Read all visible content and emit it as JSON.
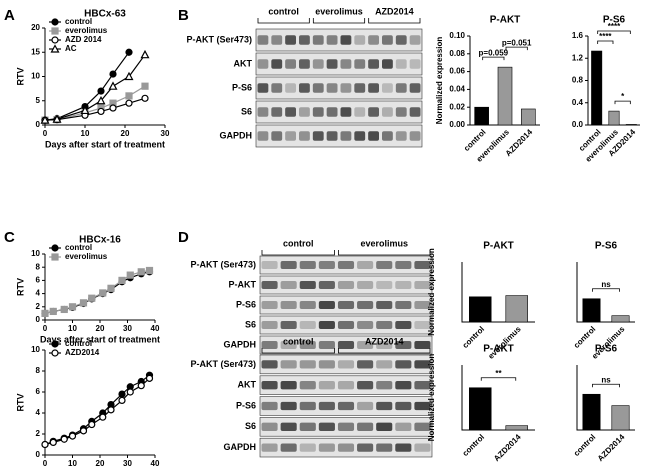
{
  "panels": [
    "A",
    "B",
    "C",
    "D"
  ],
  "blots": [
    {
      "groups": [
        "control",
        "everolimus",
        "AZD2014"
      ],
      "rows": [
        "P-AKT  (Ser473)",
        "AKT",
        "P-S6",
        "S6",
        "GAPDH"
      ]
    },
    {
      "groups": [
        "control",
        "everolimus"
      ],
      "rows": [
        "P-AKT (Ser473)",
        "P-AKT",
        "P-S6",
        "S6",
        "GAPDH"
      ]
    },
    {
      "groups": [
        "control",
        "AZD2014"
      ],
      "rows": [
        "P-AKT (Ser473)",
        "AKT",
        "P-S6",
        "S6",
        "GAPDH"
      ]
    }
  ],
  "chart_data": [
    {
      "type": "line",
      "title": "HBCx-63",
      "x_label": "Days after start of treatment",
      "y_label": "RTV",
      "x": [
        0,
        3,
        10,
        14,
        17,
        21,
        25
      ],
      "xlim": [
        0,
        30
      ],
      "xticks": [
        0,
        10,
        20,
        30
      ],
      "ylim": [
        0,
        20
      ],
      "yticks": [
        0,
        5,
        10,
        15,
        20
      ],
      "series": [
        {
          "name": "control",
          "color": "#000000",
          "marker": "circle-filled",
          "values": [
            1,
            1.3,
            3.8,
            7,
            10.5,
            15,
            null
          ]
        },
        {
          "name": "everolimus",
          "color": "#999999",
          "marker": "square-filled",
          "values": [
            1,
            1.1,
            2.5,
            3.5,
            4.5,
            6,
            8
          ]
        },
        {
          "name": "AZD 2014",
          "color": "#000000",
          "marker": "circle-open",
          "values": [
            1,
            1.1,
            2,
            2.8,
            3.5,
            4.5,
            5.5
          ]
        },
        {
          "name": "AC",
          "color": "#000000",
          "marker": "triangle-open",
          "values": [
            1,
            1.2,
            3,
            5,
            8,
            10,
            14.5
          ]
        }
      ]
    },
    {
      "type": "bar",
      "title": "P-AKT",
      "y_label": "Normalized expression",
      "categories": [
        "control",
        "everolimus",
        "AZD2014"
      ],
      "values": [
        0.02,
        0.065,
        0.018
      ],
      "colors": [
        "#000000",
        "#999999",
        "#999999"
      ],
      "ylim": [
        0,
        0.1
      ],
      "yticks": [
        {
          "value": 0,
          "label": "0.00"
        },
        {
          "value": 0.02,
          "label": "0.02"
        },
        {
          "value": 0.04,
          "label": "0.04"
        },
        {
          "value": 0.06,
          "label": "0.06"
        },
        {
          "value": 0.08,
          "label": "0.08"
        },
        {
          "value": 0.1,
          "label": "0.10"
        }
      ],
      "annotations": [
        {
          "text": "p=0.059",
          "between": [
            0,
            1
          ]
        },
        {
          "text": "p=0.051",
          "between": [
            1,
            2
          ]
        }
      ]
    },
    {
      "type": "bar",
      "title": "P-S6",
      "categories": [
        "control",
        "everolimus",
        "AZD2014"
      ],
      "values": [
        1.33,
        0.25,
        0.01
      ],
      "colors": [
        "#000000",
        "#999999",
        "#999999"
      ],
      "ylim": [
        0,
        1.6
      ],
      "yticks": [
        {
          "value": 0,
          "label": "0.0"
        },
        {
          "value": 0.4,
          "label": "0.4"
        },
        {
          "value": 0.8,
          "label": "0.8"
        },
        {
          "value": 1.2,
          "label": "1.2"
        },
        {
          "value": 1.6,
          "label": "1.6"
        }
      ],
      "annotations": [
        {
          "text": "*",
          "between": [
            1,
            2
          ]
        },
        {
          "text": "****",
          "between": [
            0,
            1
          ]
        },
        {
          "text": "****",
          "between": [
            0,
            2
          ]
        }
      ]
    },
    {
      "type": "line",
      "title": "HBCx-16",
      "x_label": "Days after start of treatment",
      "y_label": "RTV",
      "x": [
        0,
        3,
        7,
        10,
        14,
        17,
        21,
        24,
        28,
        31,
        35,
        38
      ],
      "xlim": [
        0,
        40
      ],
      "xticks": [
        0,
        10,
        20,
        30,
        40
      ],
      "ylim": [
        0,
        10
      ],
      "yticks": [
        0,
        2,
        4,
        6,
        8,
        10
      ],
      "series": [
        {
          "name": "control",
          "color": "#000000",
          "marker": "circle-filled",
          "values": [
            1,
            1.3,
            1.6,
            1.9,
            2.5,
            3.2,
            4,
            4.6,
            5.8,
            6.4,
            7,
            7.3
          ]
        },
        {
          "name": "everolimus",
          "color": "#999999",
          "marker": "square-filled",
          "values": [
            1,
            1.3,
            1.6,
            2,
            2.6,
            3.3,
            4.1,
            4.8,
            6,
            6.8,
            7.3,
            7.5
          ]
        }
      ]
    },
    {
      "type": "line",
      "x_label": "Days after start of treatment",
      "y_label": "RTV",
      "x": [
        0,
        3,
        7,
        10,
        14,
        17,
        21,
        24,
        28,
        31,
        35,
        38
      ],
      "xlim": [
        0,
        40
      ],
      "xticks": [
        0,
        10,
        20,
        30,
        40
      ],
      "ylim": [
        0,
        10
      ],
      "yticks": [
        0,
        2,
        4,
        6,
        8,
        10
      ],
      "series": [
        {
          "name": "control",
          "color": "#000000",
          "marker": "circle-filled",
          "values": [
            1,
            1.3,
            1.6,
            1.9,
            2.5,
            3.2,
            4,
            4.8,
            5.8,
            6.5,
            7,
            7.6
          ]
        },
        {
          "name": "AZD2014",
          "color": "#000000",
          "marker": "circle-open",
          "values": [
            1,
            1.2,
            1.5,
            1.8,
            2.3,
            2.9,
            3.6,
            4.3,
            5.2,
            6,
            6.6,
            7.3
          ]
        }
      ]
    },
    {
      "type": "bar",
      "title": "P-AKT",
      "y_label": "Normalized expression",
      "categories": [
        "control",
        "everolimus"
      ],
      "values": [
        0.42,
        0.44
      ],
      "colors": [
        "#000000",
        "#999999"
      ],
      "ylim": [
        0,
        1
      ]
    },
    {
      "type": "bar",
      "title": "P-S6",
      "categories": [
        "control",
        "everolimus"
      ],
      "values": [
        1.55,
        0.42
      ],
      "colors": [
        "#000000",
        "#999999"
      ],
      "ylim": [
        0,
        4
      ],
      "annotations": [
        {
          "text": "ns",
          "between": [
            0,
            1
          ]
        }
      ]
    },
    {
      "type": "bar",
      "title": "P-AKT",
      "y_label": "Normalized expression",
      "categories": [
        "control",
        "AZD2014"
      ],
      "values": [
        0.39,
        0.04
      ],
      "colors": [
        "#000000",
        "#999999"
      ],
      "ylim": [
        0,
        0.6
      ],
      "annotations": [
        {
          "text": "**",
          "between": [
            0,
            1
          ]
        }
      ]
    },
    {
      "type": "bar",
      "title": "P-S6",
      "categories": [
        "control",
        "AZD2014"
      ],
      "values": [
        0.22,
        0.15
      ],
      "colors": [
        "#000000",
        "#999999"
      ],
      "ylim": [
        0,
        0.4
      ],
      "annotations": [
        {
          "text": "ns",
          "between": [
            0,
            1
          ]
        }
      ]
    }
  ]
}
